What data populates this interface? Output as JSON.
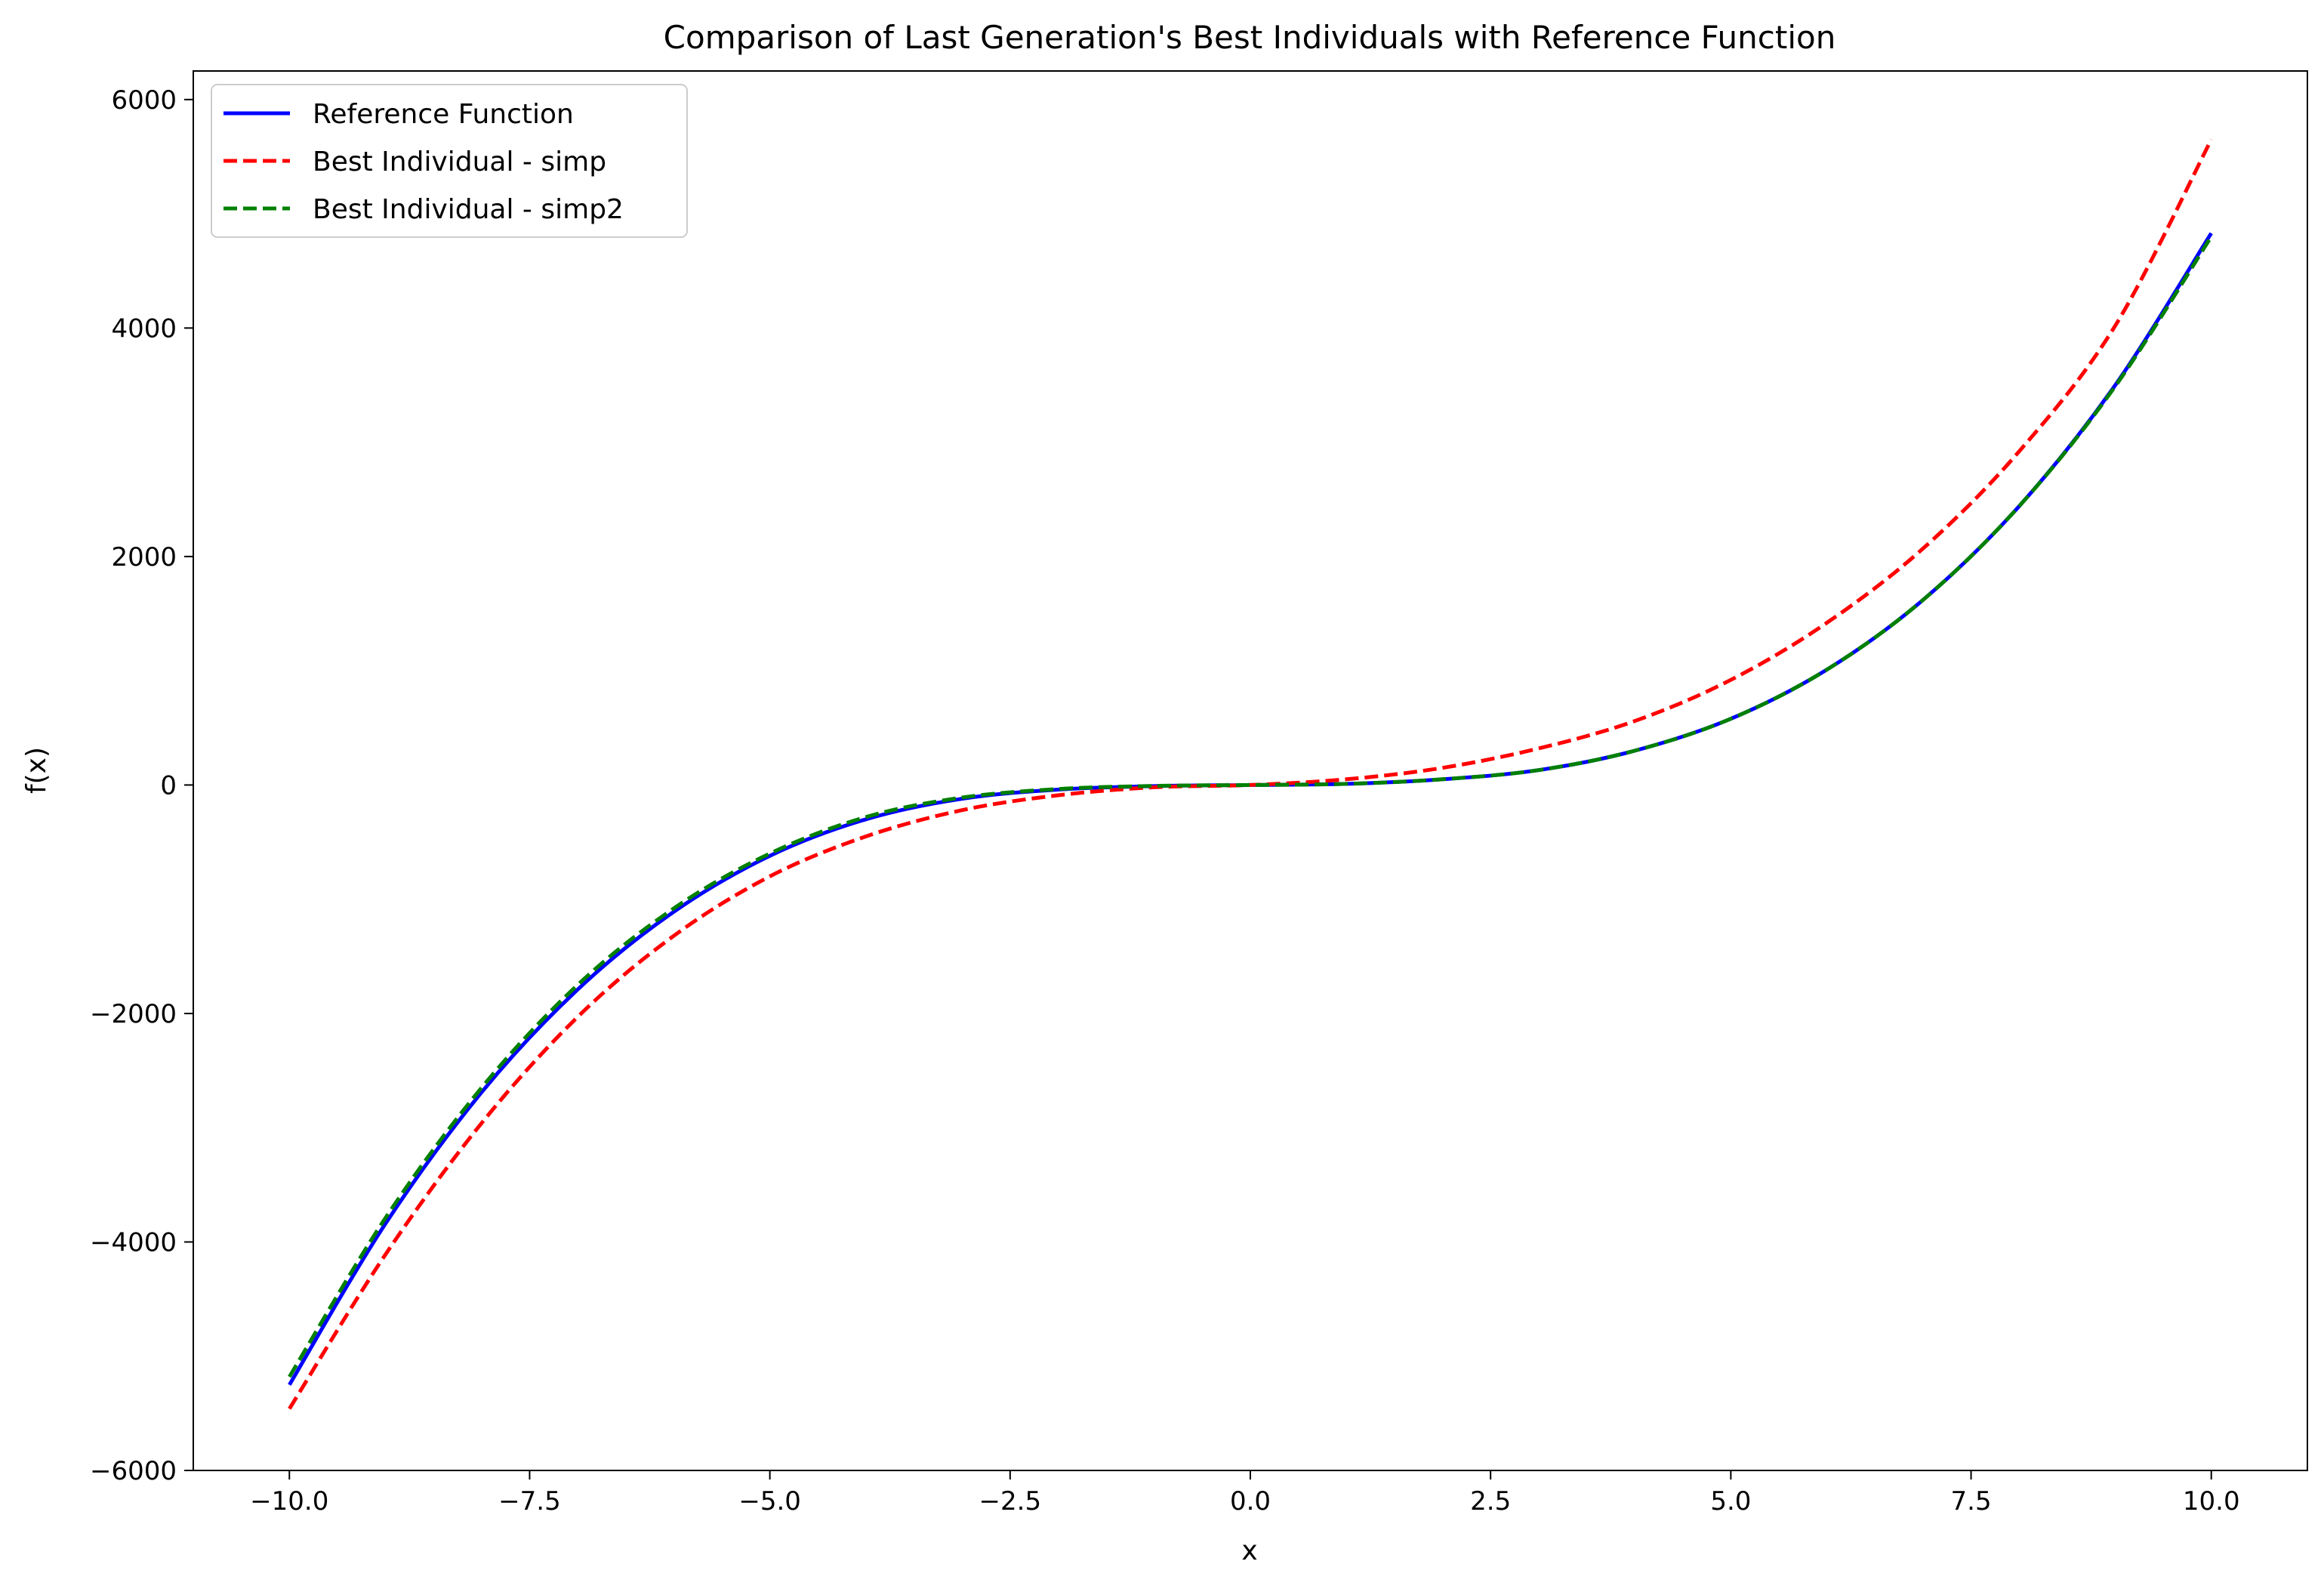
{
  "chart_data": {
    "type": "line",
    "title": "Comparison of Last Generation's Best Individuals with Reference Function",
    "xlabel": "x",
    "ylabel": "f(x)",
    "xlim": [
      -11.0,
      11.0
    ],
    "ylim": [
      -6000,
      6250
    ],
    "x_ticks": [
      -10.0,
      -7.5,
      -5.0,
      -2.5,
      0.0,
      2.5,
      5.0,
      7.5,
      10.0
    ],
    "x_tick_labels": [
      "−10.0",
      "−7.5",
      "−5.0",
      "−2.5",
      "0.0",
      "2.5",
      "5.0",
      "7.5",
      "10.0"
    ],
    "y_ticks": [
      -6000,
      -4000,
      -2000,
      0,
      2000,
      4000,
      6000
    ],
    "y_tick_labels": [
      "−6000",
      "−4000",
      "−2000",
      "0",
      "2000",
      "4000",
      "6000"
    ],
    "grid": false,
    "legend_position": "top-left",
    "series": [
      {
        "name": "Reference Function",
        "color": "#0000ff",
        "style": "solid",
        "x": [
          -10,
          -9,
          -8,
          -7,
          -6,
          -5,
          -4,
          -3,
          -2,
          -1,
          0,
          1,
          2,
          3,
          4,
          5,
          6,
          7,
          8,
          9,
          10
        ],
        "y": [
          -5250,
          -3840,
          -2690,
          -1790,
          -1110,
          -620,
          -300,
          -120,
          -40,
          -10,
          0,
          10,
          50,
          130,
          300,
          580,
          1010,
          1620,
          2440,
          3500,
          4830
        ]
      },
      {
        "name": "Best Individual - simp",
        "color": "#ff0000",
        "style": "dashed",
        "x": [
          -10,
          -9,
          -8,
          -7,
          -6,
          -5,
          -4,
          -3,
          -2,
          -1,
          0,
          1,
          2,
          3,
          4,
          5,
          6,
          7,
          8,
          9,
          10
        ],
        "y": [
          -5460,
          -4110,
          -2960,
          -2030,
          -1320,
          -800,
          -450,
          -220,
          -90,
          -20,
          0,
          50,
          150,
          320,
          560,
          920,
          1420,
          2070,
          2920,
          4020,
          5650
        ]
      },
      {
        "name": "Best Individual - simp2",
        "color": "#008000",
        "style": "dashed",
        "x": [
          -10,
          -9,
          -8,
          -7,
          -6,
          -5,
          -4,
          -3,
          -2,
          -1,
          0,
          1,
          2,
          3,
          4,
          5,
          6,
          7,
          8,
          9,
          10
        ],
        "y": [
          -5180,
          -3790,
          -2650,
          -1750,
          -1080,
          -600,
          -280,
          -110,
          -35,
          -8,
          0,
          10,
          50,
          130,
          300,
          580,
          1010,
          1620,
          2440,
          3490,
          4800
        ]
      }
    ]
  }
}
